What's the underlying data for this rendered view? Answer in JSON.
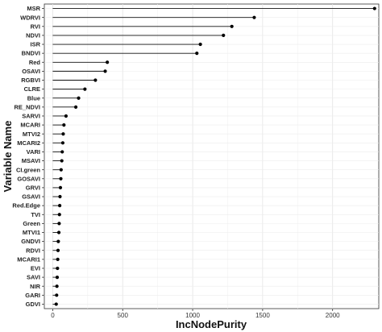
{
  "chart_data": {
    "type": "lollipop",
    "xlabel": "IncNodePurity",
    "ylabel": "Variable Name",
    "xlim": [
      -60,
      2330
    ],
    "xticks": [
      0,
      500,
      1000,
      1500,
      2000
    ],
    "grid": true,
    "categories": [
      "MSR",
      "WDRVI",
      "RVI",
      "NDVI",
      "ISR",
      "BNDVI",
      "Red",
      "OSAVI",
      "RGBVI",
      "CLRE",
      "Blue",
      "RE_NDVI",
      "SARVI",
      "MCARI",
      "MTVI2",
      "MCARI2",
      "VARI",
      "MSAVI",
      "CI.green",
      "GOSAVI",
      "GRVI",
      "GSAVI",
      "Red.Edge",
      "TVI",
      "Green",
      "MTVI1",
      "GNDVI",
      "RDVI",
      "MCARI1",
      "EVI",
      "SAVI",
      "NIR",
      "GARI",
      "GDVI"
    ],
    "values": [
      2300,
      1440,
      1280,
      1220,
      1055,
      1030,
      390,
      375,
      305,
      230,
      185,
      165,
      95,
      80,
      75,
      72,
      68,
      65,
      60,
      58,
      55,
      52,
      50,
      48,
      46,
      44,
      40,
      38,
      36,
      34,
      32,
      30,
      28,
      25
    ]
  }
}
